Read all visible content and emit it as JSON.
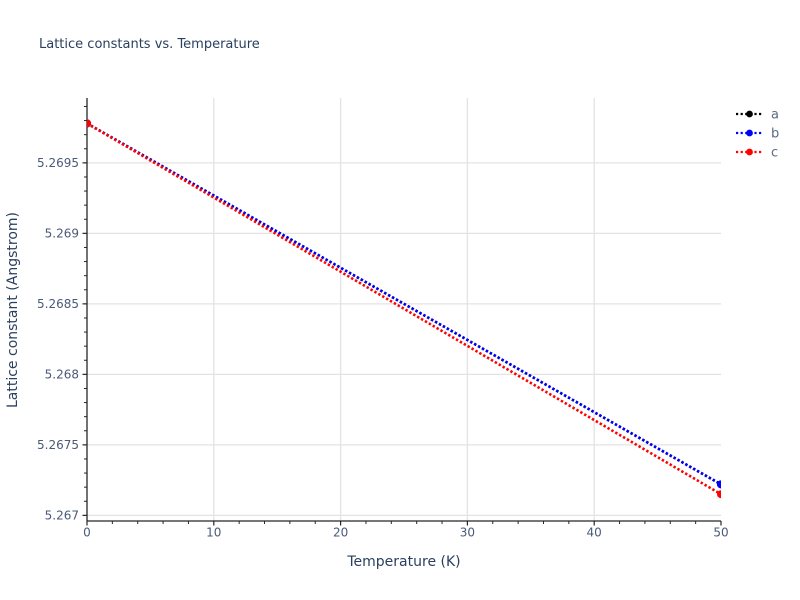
{
  "chart_data": {
    "type": "line",
    "title": "Lattice constants vs. Temperature",
    "xlabel": "Temperature (K)",
    "ylabel": "Lattice constant (Angstrom)",
    "xlim": [
      0,
      50
    ],
    "ylim": [
      5.26696,
      5.26996
    ],
    "x_ticks": {
      "values": [
        0,
        10,
        20,
        30,
        40,
        50
      ],
      "labels": [
        "0",
        "10",
        "20",
        "30",
        "40",
        "50"
      ],
      "minor_step": 2
    },
    "y_ticks": {
      "values": [
        5.267,
        5.2675,
        5.268,
        5.2685,
        5.269,
        5.2695
      ],
      "labels": [
        "5.267",
        "5.2675",
        "5.268",
        "5.2685",
        "5.269",
        "5.2695"
      ],
      "minor_step": 0.0001
    },
    "grid": {
      "show": true,
      "x_gridlines": [
        10,
        20,
        30,
        40
      ],
      "y_gridlines": [
        5.267,
        5.2675,
        5.268,
        5.2685,
        5.269,
        5.2695
      ]
    },
    "legend": {
      "position": "outside-top-right",
      "entries": [
        {
          "label": "a",
          "color": "#000000"
        },
        {
          "label": "b",
          "color": "#0000ff"
        },
        {
          "label": "c",
          "color": "#ff0000"
        }
      ]
    },
    "series": [
      {
        "name": "a",
        "color": "#000000",
        "linestyle": "dotted",
        "marker": "circle",
        "x": [
          0,
          50
        ],
        "y": [
          5.26978,
          5.26722
        ]
      },
      {
        "name": "b",
        "color": "#0000ff",
        "linestyle": "dotted",
        "marker": "circle",
        "x": [
          0,
          50
        ],
        "y": [
          5.26978,
          5.26722
        ]
      },
      {
        "name": "c",
        "color": "#ff0000",
        "linestyle": "dotted",
        "marker": "circle",
        "x": [
          0,
          50
        ],
        "y": [
          5.26978,
          5.26715
        ]
      }
    ]
  },
  "colors": {
    "background": "#ffffff",
    "title_text": "#2a3f5f",
    "axis_label_text": "#2a3f5f",
    "tick_label_text": "#4a5a78",
    "legend_text": "#5b6a84",
    "spine": "#262626",
    "grid": "#e3e3e3"
  }
}
